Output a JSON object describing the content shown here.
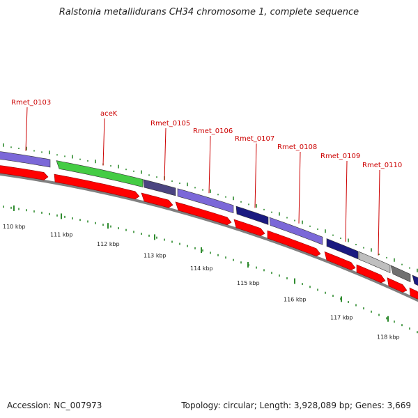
{
  "title": "Ralstonia metallidurans CH34 chromosome 1, complete sequence",
  "footer": {
    "accession": "Accession: NC_007973",
    "summary": "Topology: circular; Length: 3,928,089 bp; Genes: 3,669"
  },
  "colors": {
    "label": "#cc0000",
    "tick": "#2e8b2e",
    "cds_forward": "#ff0000",
    "purple": "#7b68d8",
    "green": "#44cc44",
    "navy": "#1a1a80",
    "dark_slate": "#4a4480",
    "grey": "#707070",
    "light_grey": "#bfbfbf",
    "backbone": "#808080"
  },
  "gene_labels": [
    "Rmet_0103",
    "aceK",
    "Rmet_0105",
    "Rmet_0106",
    "Rmet_0107",
    "Rmet_0108",
    "Rmet_0109",
    "Rmet_0110"
  ],
  "kbp_labels": [
    "110 kbp",
    "111 kbp",
    "112 kbp",
    "113 kbp",
    "114 kbp",
    "115 kbp",
    "116 kbp",
    "117 kbp",
    "118 kbp"
  ]
}
